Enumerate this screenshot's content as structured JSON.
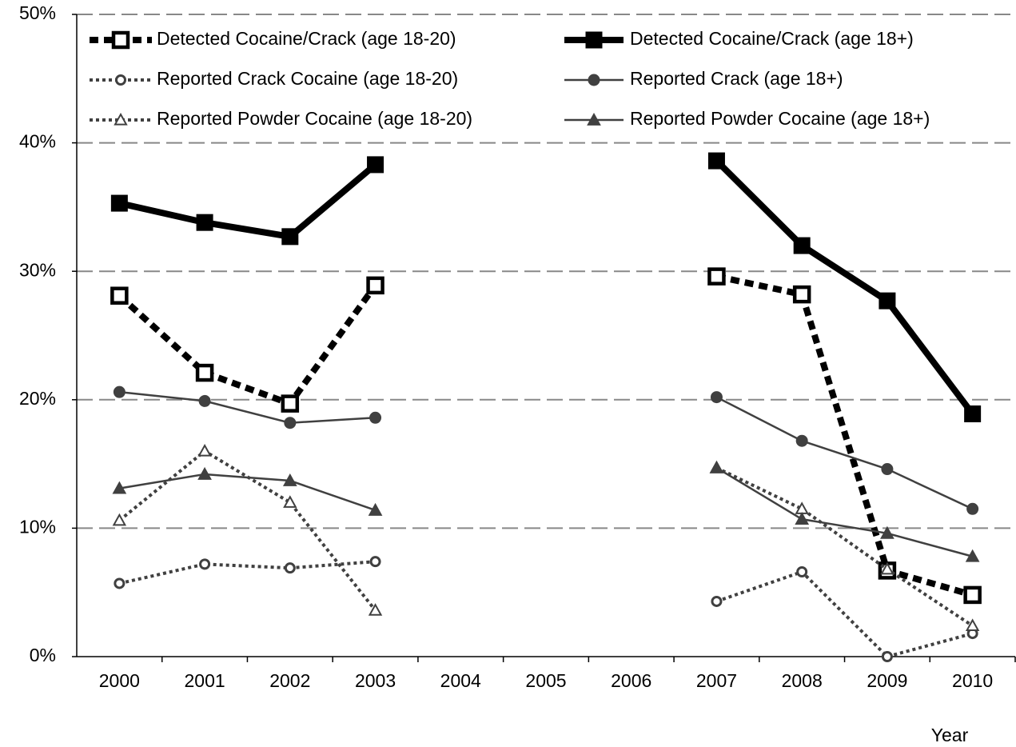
{
  "chart_data": {
    "type": "line",
    "x_label": "Year",
    "categories": [
      "2000",
      "2001",
      "2002",
      "2003",
      "2004",
      "2005",
      "2006",
      "2007",
      "2008",
      "2009",
      "2010"
    ],
    "ylim": [
      0,
      50
    ],
    "yticks": [
      {
        "value": 0,
        "label": "0%"
      },
      {
        "value": 10,
        "label": "10%"
      },
      {
        "value": 20,
        "label": "20%"
      },
      {
        "value": 30,
        "label": "30%"
      },
      {
        "value": 40,
        "label": "40%"
      },
      {
        "value": 50,
        "label": "50%"
      }
    ],
    "grid": true,
    "series": [
      {
        "name": "Detected Cocaine/Crack (age 18-20)",
        "color": "#000000",
        "line_style": "dashed",
        "marker": "open-square",
        "values": [
          28.1,
          22.1,
          19.7,
          28.9,
          null,
          null,
          null,
          29.6,
          28.2,
          6.7,
          4.8
        ]
      },
      {
        "name": "Detected Cocaine/Crack  (age 18+)",
        "color": "#000000",
        "line_style": "thick",
        "marker": "square",
        "values": [
          35.3,
          33.8,
          32.7,
          38.3,
          null,
          null,
          null,
          38.6,
          32.0,
          27.7,
          18.9
        ]
      },
      {
        "name": "Reported Crack Cocaine (age 18-20)",
        "color": "#404040",
        "line_style": "dotted",
        "marker": "open-circle",
        "values": [
          5.7,
          7.2,
          6.9,
          7.4,
          null,
          null,
          null,
          4.3,
          6.6,
          0.0,
          1.8
        ]
      },
      {
        "name": "Reported Crack (age 18+)",
        "color": "#404040",
        "line_style": "solid",
        "marker": "circle",
        "values": [
          20.6,
          19.9,
          18.2,
          18.6,
          null,
          null,
          null,
          20.2,
          16.8,
          14.6,
          11.5
        ]
      },
      {
        "name": "Reported Powder Cocaine (age 18-20)",
        "color": "#404040",
        "line_style": "dotted",
        "marker": "open-triangle",
        "values": [
          10.6,
          16.0,
          12.0,
          3.6,
          null,
          null,
          null,
          14.7,
          11.5,
          6.8,
          2.4
        ]
      },
      {
        "name": "Reported Powder Cocaine (age 18+)",
        "color": "#404040",
        "line_style": "solid",
        "marker": "triangle",
        "values": [
          13.1,
          14.2,
          13.7,
          11.4,
          null,
          null,
          null,
          14.7,
          10.7,
          9.6,
          7.8
        ]
      }
    ]
  }
}
